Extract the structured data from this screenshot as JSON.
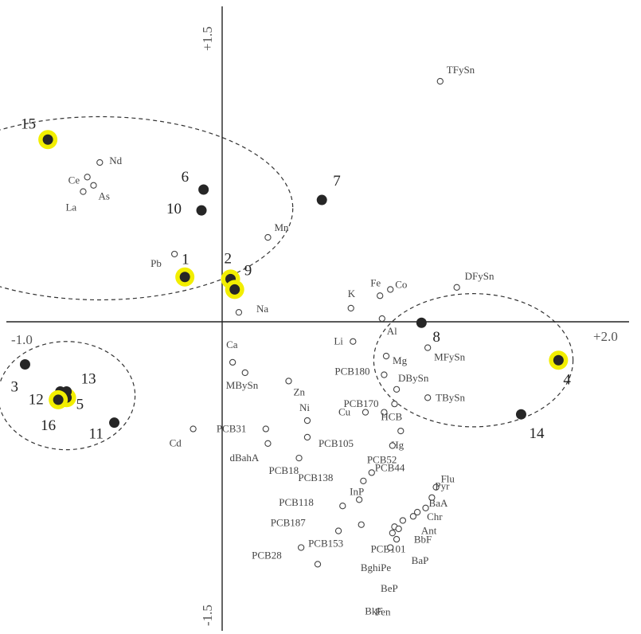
{
  "chart_data": {
    "type": "scatter",
    "xlim": [
      -1.0,
      2.0
    ],
    "ylim": [
      -1.5,
      1.5
    ],
    "axis_labels": {
      "x_min": "-1.0",
      "x_max": "+2.0",
      "y_max": "+1.5",
      "y_min": "-1.5"
    },
    "colors": {
      "highlight": "#f2ee00",
      "site": "#262626",
      "variable": "#ffffff"
    },
    "groups": [
      {
        "center": [
          -0.55,
          0.53
        ],
        "radii": [
          0.93,
          0.44
        ]
      },
      {
        "center": [
          -0.71,
          -0.37
        ],
        "radii": [
          0.33,
          0.26
        ]
      },
      {
        "center": [
          1.25,
          -0.2
        ],
        "radii": [
          0.48,
          0.32
        ]
      }
    ],
    "sites": [
      {
        "label": "1",
        "x": -0.14,
        "y": 0.2,
        "highlight": true
      },
      {
        "label": "2",
        "x": 0.08,
        "y": 0.19,
        "highlight": true
      },
      {
        "label": "3",
        "x": -0.91,
        "y": -0.22,
        "highlight": false
      },
      {
        "label": "4",
        "x": 1.66,
        "y": -0.2,
        "highlight": true
      },
      {
        "label": "5",
        "x": -0.71,
        "y": -0.38,
        "highlight": true
      },
      {
        "label": "6",
        "x": -0.05,
        "y": 0.62,
        "highlight": false
      },
      {
        "label": "7",
        "x": 0.52,
        "y": 0.57,
        "highlight": false
      },
      {
        "label": "8",
        "x": 1.0,
        "y": -0.02,
        "highlight": false
      },
      {
        "label": "9",
        "x": 0.1,
        "y": 0.14,
        "highlight": true
      },
      {
        "label": "10",
        "x": -0.06,
        "y": 0.52,
        "highlight": false
      },
      {
        "label": "11",
        "x": -0.48,
        "y": -0.5,
        "highlight": false
      },
      {
        "label": "12",
        "x": -0.74,
        "y": -0.35,
        "highlight": false
      },
      {
        "label": "13",
        "x": -0.71,
        "y": -0.35,
        "highlight": false
      },
      {
        "label": "14",
        "x": 1.48,
        "y": -0.46,
        "highlight": false
      },
      {
        "label": "15",
        "x": -0.8,
        "y": 0.86,
        "highlight": true
      },
      {
        "label": "16",
        "x": -0.75,
        "y": -0.39,
        "highlight": true
      }
    ],
    "variables": [
      {
        "label": "TFySn",
        "x": 1.09,
        "y": 1.14
      },
      {
        "label": "Nd",
        "x": -0.55,
        "y": 0.75
      },
      {
        "label": "Ce",
        "x": -0.61,
        "y": 0.68
      },
      {
        "label": "As",
        "x": -0.58,
        "y": 0.64
      },
      {
        "label": "La",
        "x": -0.63,
        "y": 0.61
      },
      {
        "label": "Mn",
        "x": 0.26,
        "y": 0.39
      },
      {
        "label": "Pb",
        "x": -0.19,
        "y": 0.31
      },
      {
        "label": "Na",
        "x": 0.12,
        "y": 0.03
      },
      {
        "label": "K",
        "x": 0.66,
        "y": 0.05
      },
      {
        "label": "Fe",
        "x": 0.8,
        "y": 0.11
      },
      {
        "label": "Co",
        "x": 0.85,
        "y": 0.14
      },
      {
        "label": "DFySn",
        "x": 1.17,
        "y": 0.15
      },
      {
        "label": "Al",
        "x": 0.81,
        "y": 0.0
      },
      {
        "label": "Li",
        "x": 0.67,
        "y": -0.11
      },
      {
        "label": "Mg",
        "x": 0.83,
        "y": -0.18
      },
      {
        "label": "MFySn",
        "x": 1.03,
        "y": -0.14
      },
      {
        "label": "Ca",
        "x": 0.09,
        "y": -0.21
      },
      {
        "label": "MBySn",
        "x": 0.15,
        "y": -0.26
      },
      {
        "label": "Zn",
        "x": 0.36,
        "y": -0.3
      },
      {
        "label": "PCB180",
        "x": 0.82,
        "y": -0.27
      },
      {
        "label": "DBySn",
        "x": 0.88,
        "y": -0.34
      },
      {
        "label": "TBySn",
        "x": 1.03,
        "y": -0.38
      },
      {
        "label": "PCB170",
        "x": 0.87,
        "y": -0.41
      },
      {
        "label": "HCB",
        "x": 0.82,
        "y": -0.45
      },
      {
        "label": "Cu",
        "x": 0.73,
        "y": -0.45
      },
      {
        "label": "Ni",
        "x": 0.45,
        "y": -0.49
      },
      {
        "label": "PCB31",
        "x": 0.25,
        "y": -0.53
      },
      {
        "label": "Hg",
        "x": 0.9,
        "y": -0.54
      },
      {
        "label": "PCB105",
        "x": 0.45,
        "y": -0.57
      },
      {
        "label": "Cd",
        "x": -0.1,
        "y": -0.53
      },
      {
        "label": "dBahA",
        "x": 0.26,
        "y": -0.6
      },
      {
        "label": "PCB52",
        "x": 0.86,
        "y": -0.61
      },
      {
        "label": "PCB18",
        "x": 0.41,
        "y": -0.67
      },
      {
        "label": "PCB44",
        "x": 0.76,
        "y": -0.74
      },
      {
        "label": "PCB138",
        "x": 0.72,
        "y": -0.78
      },
      {
        "label": "Flu",
        "x": 1.07,
        "y": -0.81
      },
      {
        "label": "Pyr",
        "x": 1.05,
        "y": -0.86
      },
      {
        "label": "InP",
        "x": 0.7,
        "y": -0.87
      },
      {
        "label": "PCB118",
        "x": 0.62,
        "y": -0.9
      },
      {
        "label": "BaA",
        "x": 1.02,
        "y": -0.91
      },
      {
        "label": "Chr",
        "x": 0.98,
        "y": -0.93
      },
      {
        "label": "Ant",
        "x": 0.96,
        "y": -0.95
      },
      {
        "label": "BbF",
        "x": 0.91,
        "y": -0.97
      },
      {
        "label": "PCB187",
        "x": 0.71,
        "y": -0.99
      },
      {
        "label": "PCB153",
        "x": 0.6,
        "y": -1.02
      },
      {
        "label": "PCB101",
        "x": 0.87,
        "y": -1.0
      },
      {
        "label": "BaP",
        "x": 0.89,
        "y": -1.01
      },
      {
        "label": "BghiPe",
        "x": 0.86,
        "y": -1.03
      },
      {
        "label": "BeP",
        "x": 0.88,
        "y": -1.06
      },
      {
        "label": "PCB28",
        "x": 0.42,
        "y": -1.1
      },
      {
        "label": "BkF",
        "x": 0.85,
        "y": -1.1
      },
      {
        "label": "Fen",
        "x": 0.5,
        "y": -1.18
      }
    ]
  }
}
